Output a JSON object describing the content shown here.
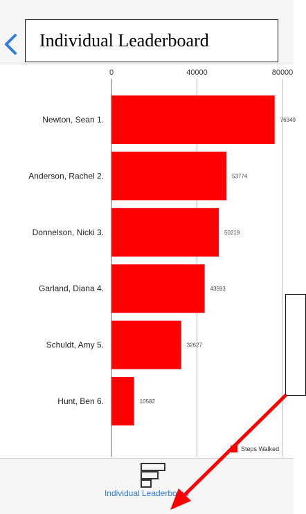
{
  "header": {
    "title": "Individual Leaderboard",
    "back_icon": "chevron-left-icon"
  },
  "chart_data": {
    "type": "bar",
    "orientation": "horizontal",
    "categories": [
      "Newton, Sean 1.",
      "Anderson, Rachel 2.",
      "Donnelson, Nicki 3.",
      "Garland, Diana 4.",
      "Schuldt, Amy 5.",
      "Hunt, Ben 6."
    ],
    "values": [
      76349,
      53774,
      50219,
      43593,
      32627,
      10582
    ],
    "value_labels": [
      "76349",
      "53774",
      "50219",
      "43593",
      "32627",
      "10582"
    ],
    "xticks": [
      "0",
      "40000",
      "80000"
    ],
    "xlim": [
      0,
      80000
    ],
    "grid": true,
    "axis_position": "top",
    "legend": {
      "position": "bottom-right",
      "entries": [
        "Steps Walked"
      ]
    },
    "series": [
      {
        "name": "Steps Walked",
        "color": "#ff0000"
      }
    ]
  },
  "tabbar": {
    "active_tab_label": "Individual Leaderboard",
    "active_tab_icon": "leaderboard-icon",
    "active_color": "#2d7de0"
  },
  "colors": {
    "bar": "#ff0000",
    "arrow": "#ff0000",
    "tab_active": "#2d7de0"
  }
}
